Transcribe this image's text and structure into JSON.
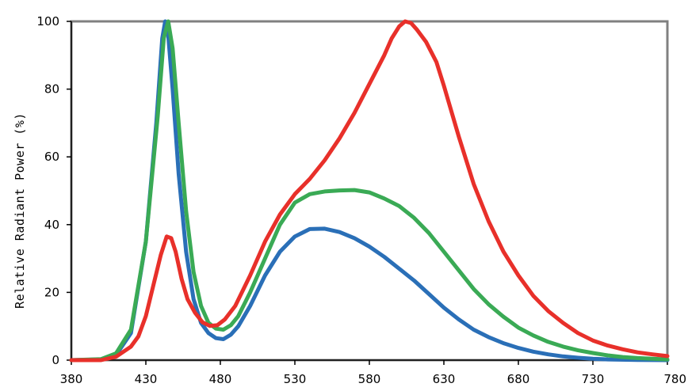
{
  "chart_data": {
    "type": "line",
    "title": "",
    "xlabel": "",
    "ylabel": "Relative Radiant Power  (%)",
    "xlim": [
      380,
      780
    ],
    "ylim": [
      0,
      100
    ],
    "x_ticks": [
      380,
      430,
      480,
      530,
      580,
      630,
      680,
      730,
      780
    ],
    "y_ticks": [
      0,
      20,
      40,
      60,
      80,
      100
    ],
    "grid": false,
    "legend": "none",
    "series": [
      {
        "color": "#2a6fb7",
        "points": [
          [
            380,
            0
          ],
          [
            400,
            0.2
          ],
          [
            410,
            1.5
          ],
          [
            420,
            8
          ],
          [
            430,
            35
          ],
          [
            437,
            70
          ],
          [
            441,
            95
          ],
          [
            443,
            100
          ],
          [
            445,
            96
          ],
          [
            448,
            80
          ],
          [
            452,
            55
          ],
          [
            457,
            32
          ],
          [
            462,
            18
          ],
          [
            467,
            11
          ],
          [
            472,
            8
          ],
          [
            477,
            6.5
          ],
          [
            482,
            6.2
          ],
          [
            487,
            7.5
          ],
          [
            492,
            10
          ],
          [
            500,
            16
          ],
          [
            510,
            25
          ],
          [
            520,
            32
          ],
          [
            530,
            36.5
          ],
          [
            540,
            38.7
          ],
          [
            550,
            38.8
          ],
          [
            560,
            37.8
          ],
          [
            570,
            36
          ],
          [
            580,
            33.5
          ],
          [
            590,
            30.5
          ],
          [
            600,
            27
          ],
          [
            610,
            23.5
          ],
          [
            620,
            19.5
          ],
          [
            630,
            15.5
          ],
          [
            640,
            12
          ],
          [
            650,
            9
          ],
          [
            660,
            6.8
          ],
          [
            670,
            5
          ],
          [
            680,
            3.6
          ],
          [
            690,
            2.5
          ],
          [
            700,
            1.7
          ],
          [
            710,
            1.1
          ],
          [
            720,
            0.7
          ],
          [
            730,
            0.4
          ],
          [
            740,
            0.2
          ],
          [
            760,
            0.05
          ],
          [
            780,
            0
          ]
        ]
      },
      {
        "color": "#3aaa55",
        "points": [
          [
            380,
            0
          ],
          [
            400,
            0.3
          ],
          [
            410,
            2
          ],
          [
            420,
            9
          ],
          [
            430,
            35
          ],
          [
            438,
            72
          ],
          [
            442,
            95
          ],
          [
            445,
            100
          ],
          [
            448,
            92
          ],
          [
            452,
            70
          ],
          [
            457,
            44
          ],
          [
            462,
            26
          ],
          [
            467,
            16
          ],
          [
            472,
            11
          ],
          [
            477,
            9.3
          ],
          [
            482,
            9
          ],
          [
            487,
            10.3
          ],
          [
            492,
            13
          ],
          [
            500,
            20
          ],
          [
            510,
            30
          ],
          [
            520,
            40
          ],
          [
            530,
            46.5
          ],
          [
            540,
            49
          ],
          [
            550,
            49.8
          ],
          [
            560,
            50.1
          ],
          [
            570,
            50.2
          ],
          [
            580,
            49.5
          ],
          [
            590,
            47.7
          ],
          [
            600,
            45.5
          ],
          [
            610,
            42
          ],
          [
            620,
            37.5
          ],
          [
            630,
            32
          ],
          [
            640,
            26.5
          ],
          [
            650,
            21
          ],
          [
            660,
            16.5
          ],
          [
            670,
            12.8
          ],
          [
            680,
            9.6
          ],
          [
            690,
            7.3
          ],
          [
            700,
            5.4
          ],
          [
            710,
            4
          ],
          [
            720,
            2.9
          ],
          [
            730,
            2.1
          ],
          [
            740,
            1.4
          ],
          [
            750,
            0.9
          ],
          [
            760,
            0.6
          ],
          [
            780,
            0.2
          ]
        ]
      },
      {
        "color": "#e8302a",
        "points": [
          [
            380,
            0
          ],
          [
            400,
            0
          ],
          [
            410,
            1
          ],
          [
            420,
            4
          ],
          [
            425,
            7
          ],
          [
            430,
            13
          ],
          [
            435,
            22
          ],
          [
            440,
            31
          ],
          [
            444,
            36.5
          ],
          [
            447,
            36
          ],
          [
            450,
            32
          ],
          [
            454,
            24
          ],
          [
            458,
            18
          ],
          [
            463,
            14
          ],
          [
            468,
            11.2
          ],
          [
            473,
            10.1
          ],
          [
            478,
            10.3
          ],
          [
            483,
            12
          ],
          [
            490,
            16
          ],
          [
            500,
            25
          ],
          [
            510,
            35
          ],
          [
            520,
            43
          ],
          [
            530,
            49
          ],
          [
            540,
            53.5
          ],
          [
            550,
            59
          ],
          [
            560,
            65.5
          ],
          [
            570,
            73
          ],
          [
            580,
            81.5
          ],
          [
            590,
            90
          ],
          [
            595,
            95
          ],
          [
            600,
            98.5
          ],
          [
            604,
            100
          ],
          [
            608,
            99.5
          ],
          [
            612,
            97.5
          ],
          [
            618,
            94
          ],
          [
            625,
            88
          ],
          [
            630,
            81
          ],
          [
            640,
            66
          ],
          [
            650,
            52
          ],
          [
            660,
            41
          ],
          [
            670,
            32
          ],
          [
            680,
            25
          ],
          [
            690,
            19
          ],
          [
            700,
            14.5
          ],
          [
            710,
            11
          ],
          [
            720,
            8
          ],
          [
            730,
            5.8
          ],
          [
            740,
            4.3
          ],
          [
            750,
            3.2
          ],
          [
            760,
            2.3
          ],
          [
            770,
            1.7
          ],
          [
            780,
            1.2
          ]
        ]
      }
    ]
  }
}
